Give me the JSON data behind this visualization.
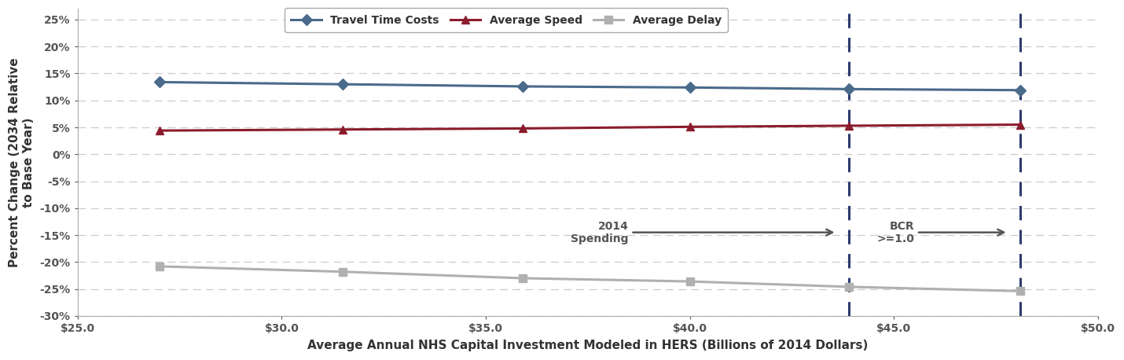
{
  "travel_time_x": [
    27.0,
    31.5,
    35.9,
    40.0,
    43.9,
    48.1
  ],
  "travel_time_y": [
    13.4,
    13.0,
    12.6,
    12.4,
    12.1,
    11.9
  ],
  "avg_speed_x": [
    27.0,
    31.5,
    35.9,
    40.0,
    43.9,
    48.1
  ],
  "avg_speed_y": [
    4.4,
    4.6,
    4.8,
    5.1,
    5.3,
    5.5
  ],
  "avg_delay_x": [
    27.0,
    31.5,
    35.9,
    40.0,
    43.9,
    48.1
  ],
  "avg_delay_y": [
    -20.8,
    -21.8,
    -23.0,
    -23.6,
    -24.6,
    -25.4
  ],
  "travel_time_color": "#4a6a8a",
  "avg_speed_color": "#8b1c2c",
  "avg_delay_color": "#b0b0b0",
  "vline1_x": 43.9,
  "vline2_x": 48.1,
  "vline_color": "#2e3a6e",
  "xlabel": "Average Annual NHS Capital Investment Modeled in HERS (Billions of 2014 Dollars)",
  "ylabel": "Percent Change (2034 Relative\nto Base Year)",
  "legend_labels": [
    "Travel Time Costs",
    "Average Speed",
    "Average Delay"
  ],
  "xlim": [
    25.0,
    50.0
  ],
  "ylim": [
    -30,
    27
  ],
  "xticks": [
    25.0,
    30.0,
    35.0,
    40.0,
    45.0,
    50.0
  ],
  "yticks": [
    -30,
    -25,
    -20,
    -15,
    -10,
    -5,
    0,
    5,
    10,
    15,
    20,
    25
  ],
  "xlabel_fontsize": 11,
  "ylabel_fontsize": 11,
  "tick_fontsize": 10,
  "legend_fontsize": 10,
  "annotation_fontsize": 10,
  "line_width": 2.2,
  "marker_size": 7
}
